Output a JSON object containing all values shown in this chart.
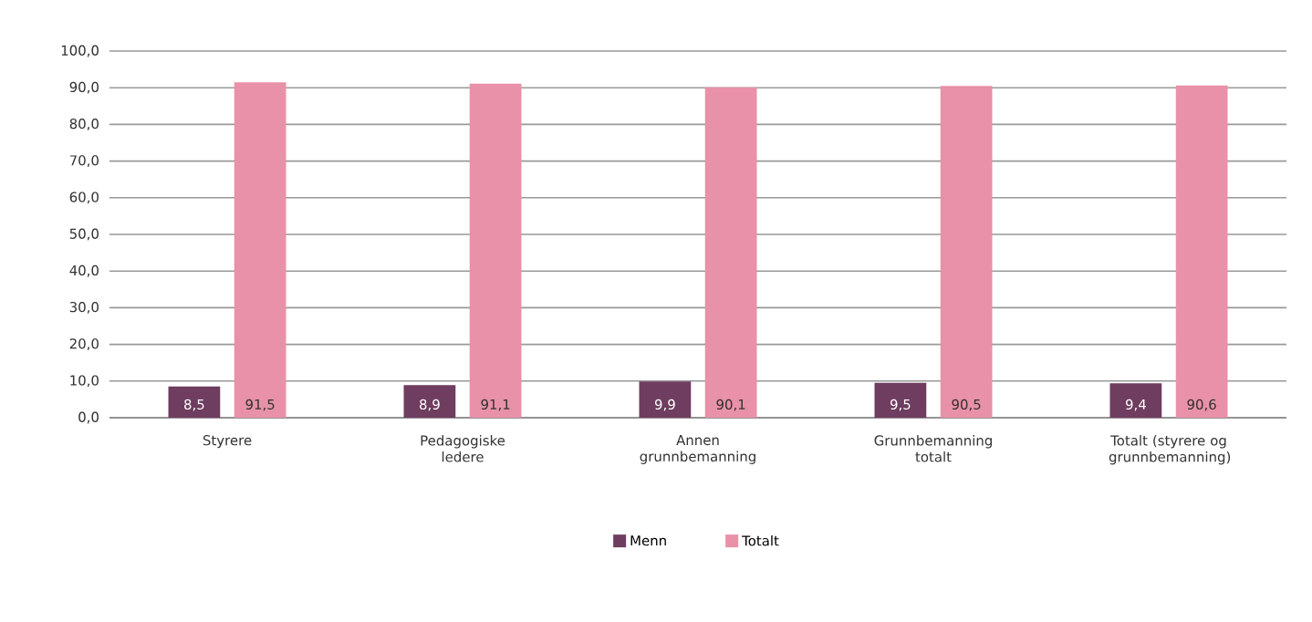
{
  "chart_data": {
    "type": "bar",
    "categories": [
      "Styrere",
      "Pedagogiske ledere",
      "Annen grunnbemanning",
      "Grunnbemanning totalt",
      "Totalt (styrere og grunnbemanning)"
    ],
    "series": [
      {
        "name": "Menn",
        "color": "#6e3d5f",
        "values": [
          8.5,
          8.9,
          9.9,
          9.5,
          9.4
        ],
        "value_labels": [
          "8,5",
          "8,9",
          "9,9",
          "9,5",
          "9,4"
        ]
      },
      {
        "name": "Totalt",
        "color": "#e891a8",
        "values": [
          91.5,
          91.1,
          90.1,
          90.5,
          90.6
        ],
        "value_labels": [
          "91,5",
          "91,1",
          "90,1",
          "90,5",
          "90,6"
        ]
      }
    ],
    "ylim": [
      0,
      100
    ],
    "yticks": [
      {
        "value": 0,
        "label": "0,0"
      },
      {
        "value": 10,
        "label": "10,0"
      },
      {
        "value": 20,
        "label": "20,0"
      },
      {
        "value": 30,
        "label": "30,0"
      },
      {
        "value": 40,
        "label": "40,0"
      },
      {
        "value": 50,
        "label": "50,0"
      },
      {
        "value": 60,
        "label": "60,0"
      },
      {
        "value": 70,
        "label": "70,0"
      },
      {
        "value": 80,
        "label": "80,0"
      },
      {
        "value": 90,
        "label": "90,0"
      },
      {
        "value": 100,
        "label": "100,0"
      }
    ],
    "grid": "y",
    "legend": "bottom"
  }
}
